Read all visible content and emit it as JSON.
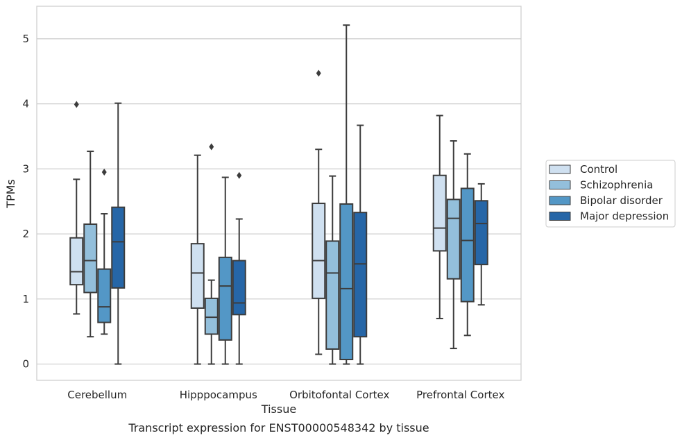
{
  "caption": "Transcript expression for ENST00000548342 by tissue",
  "chart_data": {
    "type": "box",
    "xlabel": "Tissue",
    "ylabel": "TPMs",
    "ylim": [
      -0.25,
      5.5
    ],
    "yticks": [
      0,
      1,
      2,
      3,
      4,
      5
    ],
    "grid": true,
    "legend_position": "right",
    "categories": [
      "Cerebellum",
      "Hipppocampus",
      "Orbitofontal Cortex",
      "Prefrontal Cortex"
    ],
    "series": [
      {
        "name": "Control",
        "color": "#cfe0f0",
        "boxes": [
          {
            "whisker_low": 0.77,
            "q1": 1.22,
            "median": 1.42,
            "q3": 1.94,
            "whisker_high": 2.84,
            "outliers": [
              3.99
            ]
          },
          {
            "whisker_low": 0.0,
            "q1": 0.86,
            "median": 1.4,
            "q3": 1.85,
            "whisker_high": 3.21,
            "outliers": []
          },
          {
            "whisker_low": 0.15,
            "q1": 1.01,
            "median": 1.59,
            "q3": 2.47,
            "whisker_high": 3.3,
            "outliers": [
              4.47
            ]
          },
          {
            "whisker_low": 0.7,
            "q1": 1.74,
            "median": 2.09,
            "q3": 2.9,
            "whisker_high": 3.82,
            "outliers": []
          }
        ]
      },
      {
        "name": "Schizophrenia",
        "color": "#93bfdb",
        "boxes": [
          {
            "whisker_low": 0.42,
            "q1": 1.1,
            "median": 1.59,
            "q3": 2.15,
            "whisker_high": 3.27,
            "outliers": []
          },
          {
            "whisker_low": 0.0,
            "q1": 0.46,
            "median": 0.72,
            "q3": 1.01,
            "whisker_high": 1.29,
            "outliers": [
              3.34
            ]
          },
          {
            "whisker_low": 0.0,
            "q1": 0.23,
            "median": 1.4,
            "q3": 1.89,
            "whisker_high": 2.89,
            "outliers": []
          },
          {
            "whisker_low": 0.24,
            "q1": 1.31,
            "median": 2.24,
            "q3": 2.53,
            "whisker_high": 3.43,
            "outliers": []
          }
        ]
      },
      {
        "name": "Bipolar disorder",
        "color": "#5397c6",
        "boxes": [
          {
            "whisker_low": 0.46,
            "q1": 0.64,
            "median": 0.88,
            "q3": 1.46,
            "whisker_high": 2.31,
            "outliers": [
              2.95
            ]
          },
          {
            "whisker_low": 0.0,
            "q1": 0.37,
            "median": 1.2,
            "q3": 1.64,
            "whisker_high": 2.87,
            "outliers": []
          },
          {
            "whisker_low": 0.0,
            "q1": 0.07,
            "median": 1.16,
            "q3": 2.46,
            "whisker_high": 5.21,
            "outliers": []
          },
          {
            "whisker_low": 0.44,
            "q1": 0.96,
            "median": 1.9,
            "q3": 2.7,
            "whisker_high": 3.23,
            "outliers": []
          }
        ]
      },
      {
        "name": "Major depression",
        "color": "#2666a7",
        "boxes": [
          {
            "whisker_low": 0.0,
            "q1": 1.17,
            "median": 1.88,
            "q3": 2.41,
            "whisker_high": 4.01,
            "outliers": []
          },
          {
            "whisker_low": 0.0,
            "q1": 0.76,
            "median": 0.94,
            "q3": 1.59,
            "whisker_high": 2.23,
            "outliers": [
              2.9
            ]
          },
          {
            "whisker_low": 0.0,
            "q1": 0.42,
            "median": 1.54,
            "q3": 2.33,
            "whisker_high": 3.67,
            "outliers": []
          },
          {
            "whisker_low": 0.91,
            "q1": 1.53,
            "median": 2.16,
            "q3": 2.51,
            "whisker_high": 2.77,
            "outliers": []
          }
        ]
      }
    ]
  }
}
